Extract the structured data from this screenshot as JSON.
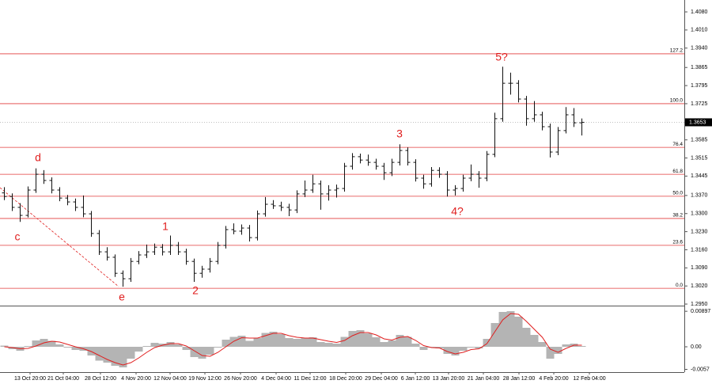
{
  "chart_data": [
    {
      "type": "ohlc",
      "xlim": [
        -0.5,
        86
      ],
      "ylim": [
        1.2944,
        1.4126
      ],
      "yticks": [
        {
          "value": 1.408,
          "label": "1.4080"
        },
        {
          "value": 1.401,
          "label": "1.4010"
        },
        {
          "value": 1.394,
          "label": "1.3940"
        },
        {
          "value": 1.3865,
          "label": "1.3865"
        },
        {
          "value": 1.3795,
          "label": "1.3795"
        },
        {
          "value": 1.3725,
          "label": "1.3725"
        },
        {
          "value": 1.3585,
          "label": "1.3585"
        },
        {
          "value": 1.3515,
          "label": "1.3515"
        },
        {
          "value": 1.3445,
          "label": "1.3445"
        },
        {
          "value": 1.337,
          "label": "1.3370"
        },
        {
          "value": 1.33,
          "label": "1.3300"
        },
        {
          "value": 1.323,
          "label": "1.3230"
        },
        {
          "value": 1.316,
          "label": "1.3160"
        },
        {
          "value": 1.309,
          "label": "1.3090"
        },
        {
          "value": 1.302,
          "label": "1.3020"
        },
        {
          "value": 1.295,
          "label": "1.2950"
        }
      ],
      "xticks": [
        {
          "value": 3.3,
          "label": "13 Oct 20:00"
        },
        {
          "value": 7.5,
          "label": "21 Oct 04:00"
        },
        {
          "value": 12.2,
          "label": "28 Oct 12:00"
        },
        {
          "value": 16.7,
          "label": "4 Nov 20:00"
        },
        {
          "value": 21.0,
          "label": "12 Nov 04:00"
        },
        {
          "value": 25.4,
          "label": "19 Nov 12:00"
        },
        {
          "value": 29.9,
          "label": "26 Nov 20:00"
        },
        {
          "value": 34.4,
          "label": "4 Dec 04:00"
        },
        {
          "value": 38.7,
          "label": "11 Dec 12:00"
        },
        {
          "value": 43.2,
          "label": "18 Dec 20:00"
        },
        {
          "value": 47.7,
          "label": "29 Dec 04:00"
        },
        {
          "value": 52.0,
          "label": "6 Jan 12:00"
        },
        {
          "value": 56.2,
          "label": "13 Jan 20:00"
        },
        {
          "value": 60.6,
          "label": "21 Jan 04:00"
        },
        {
          "value": 65.1,
          "label": "28 Jan 12:00"
        },
        {
          "value": 69.5,
          "label": "4 Feb 20:00"
        },
        {
          "value": 74.0,
          "label": "12 Feb 04:00"
        }
      ],
      "open": [
        1.338,
        1.3366,
        1.3324,
        1.3293,
        1.3391,
        1.3452,
        1.3428,
        1.3391,
        1.336,
        1.3345,
        1.3324,
        1.3299,
        1.3223,
        1.3152,
        1.3131,
        1.3069,
        1.3048,
        1.3115,
        1.314,
        1.3152,
        1.317,
        1.3152,
        1.3177,
        1.3152,
        1.3115,
        1.3069,
        1.3085,
        1.3115,
        1.3177,
        1.3238,
        1.3232,
        1.3244,
        1.3207,
        1.3299,
        1.3336,
        1.333,
        1.3324,
        1.3314,
        1.3376,
        1.3391,
        1.3415,
        1.3376,
        1.3391,
        1.3397,
        1.3483,
        1.352,
        1.3507,
        1.3498,
        1.3483,
        1.3458,
        1.3498,
        1.3544,
        1.3498,
        1.3437,
        1.3415,
        1.3467,
        1.3452,
        1.3391,
        1.3397,
        1.3437,
        1.3452,
        1.3437,
        1.3529,
        1.3667,
        1.3804,
        1.3804,
        1.3743,
        1.3667,
        1.3682,
        1.3636,
        1.3538,
        1.3621,
        1.3682,
        1.3651
      ],
      "high": [
        1.3402,
        1.3378,
        1.334,
        1.3405,
        1.3475,
        1.3468,
        1.344,
        1.3402,
        1.3372,
        1.3358,
        1.337,
        1.331,
        1.3236,
        1.317,
        1.3142,
        1.308,
        1.3128,
        1.3155,
        1.318,
        1.3184,
        1.3182,
        1.3215,
        1.319,
        1.3164,
        1.3126,
        1.3098,
        1.3128,
        1.319,
        1.3252,
        1.3262,
        1.3258,
        1.3256,
        1.3312,
        1.3364,
        1.3352,
        1.3346,
        1.3338,
        1.339,
        1.3428,
        1.345,
        1.3428,
        1.341,
        1.3412,
        1.3496,
        1.3534,
        1.3532,
        1.3528,
        1.3512,
        1.3496,
        1.3512,
        1.3568,
        1.3556,
        1.351,
        1.345,
        1.348,
        1.3479,
        1.3464,
        1.341,
        1.345,
        1.349,
        1.3464,
        1.3542,
        1.369,
        1.3868,
        1.3845,
        1.3816,
        1.3755,
        1.3735,
        1.3694,
        1.3648,
        1.3635,
        1.3712,
        1.3708,
        1.3668
      ],
      "low": [
        1.3352,
        1.331,
        1.3268,
        1.3285,
        1.338,
        1.3415,
        1.3378,
        1.3348,
        1.3332,
        1.331,
        1.3286,
        1.321,
        1.314,
        1.3118,
        1.3055,
        1.3017,
        1.3036,
        1.3104,
        1.3128,
        1.314,
        1.3138,
        1.314,
        1.314,
        1.3102,
        1.3036,
        1.3052,
        1.3072,
        1.3104,
        1.3165,
        1.322,
        1.3218,
        1.3192,
        1.3196,
        1.3288,
        1.3318,
        1.331,
        1.329,
        1.3302,
        1.3364,
        1.338,
        1.3315,
        1.335,
        1.3362,
        1.3385,
        1.347,
        1.3494,
        1.3485,
        1.347,
        1.343,
        1.3445,
        1.3486,
        1.3486,
        1.3424,
        1.3396,
        1.3404,
        1.3438,
        1.3366,
        1.337,
        1.3385,
        1.3425,
        1.34,
        1.3425,
        1.3518,
        1.3655,
        1.376,
        1.373,
        1.364,
        1.3655,
        1.3622,
        1.3517,
        1.3526,
        1.361,
        1.3635,
        1.3602
      ],
      "close": [
        1.3366,
        1.3324,
        1.3293,
        1.3391,
        1.3452,
        1.3428,
        1.3391,
        1.336,
        1.3345,
        1.3324,
        1.3299,
        1.3223,
        1.3152,
        1.3131,
        1.3069,
        1.3048,
        1.3115,
        1.314,
        1.3152,
        1.317,
        1.3152,
        1.3177,
        1.3152,
        1.3115,
        1.3069,
        1.3085,
        1.3115,
        1.3177,
        1.3238,
        1.3232,
        1.3244,
        1.3207,
        1.3299,
        1.3336,
        1.333,
        1.3324,
        1.3314,
        1.3376,
        1.3391,
        1.3415,
        1.3376,
        1.3391,
        1.3397,
        1.3483,
        1.352,
        1.3507,
        1.3498,
        1.3483,
        1.3458,
        1.3498,
        1.3544,
        1.3498,
        1.3437,
        1.3415,
        1.3467,
        1.3452,
        1.3391,
        1.3397,
        1.3437,
        1.3452,
        1.3437,
        1.3529,
        1.3667,
        1.3804,
        1.3804,
        1.3743,
        1.3667,
        1.3682,
        1.3636,
        1.3538,
        1.3621,
        1.3682,
        1.3651,
        1.3653
      ],
      "fib_levels": [
        {
          "value": 1.3918,
          "label": "127.2"
        },
        {
          "value": 1.3725,
          "label": "100.0"
        },
        {
          "value": 1.3556,
          "label": "76.4"
        },
        {
          "value": 1.3452,
          "label": "61.8"
        },
        {
          "value": 1.3367,
          "label": "50.0"
        },
        {
          "value": 1.3281,
          "label": "38.2"
        },
        {
          "value": 1.3177,
          "label": "23.6"
        },
        {
          "value": 1.3011,
          "label": "0.0"
        }
      ],
      "fib_color": "#e23b3b",
      "last_price": 1.3653,
      "annotations": [
        "d",
        "c",
        "e",
        "1",
        "2",
        "3",
        "4?",
        "5?"
      ]
    },
    {
      "type": "macd",
      "ylim": [
        -0.0064,
        0.01
      ],
      "yticks": [
        0.00897,
        {
          "value": 0,
          "label": "0.00"
        },
        -0.0057
      ],
      "histogram": [
        0.0003,
        -0.0006,
        -0.001,
        0.0002,
        0.0016,
        0.002,
        0.0015,
        0.0006,
        -0.0002,
        -0.0008,
        -0.001,
        -0.0022,
        -0.0035,
        -0.004,
        -0.0048,
        -0.0052,
        -0.003,
        -0.0012,
        0.0002,
        0.001,
        0.0008,
        0.0012,
        0.0006,
        -0.0008,
        -0.0026,
        -0.003,
        -0.002,
        -0.0002,
        0.0018,
        0.0025,
        0.0028,
        0.0015,
        0.0022,
        0.0035,
        0.0038,
        0.0032,
        0.0022,
        0.002,
        0.0022,
        0.0024,
        0.0012,
        0.001,
        0.0008,
        0.0025,
        0.004,
        0.0042,
        0.0034,
        0.0024,
        0.0012,
        0.0016,
        0.003,
        0.0025,
        0.0008,
        -0.0008,
        -0.0002,
        -0.0004,
        -0.0018,
        -0.0022,
        -0.001,
        -0.0002,
        -0.0004,
        0.002,
        0.006,
        0.0088,
        0.009,
        0.0076,
        0.0048,
        0.003,
        0.0012,
        -0.003,
        -0.0018,
        0.0006,
        0.0008,
        0.0002
      ],
      "signal": [
        0.0,
        -0.0002,
        -0.0005,
        -0.0004,
        0.0002,
        0.001,
        0.0014,
        0.0012,
        0.0006,
        0.0,
        -0.0005,
        -0.0012,
        -0.0022,
        -0.0032,
        -0.004,
        -0.0046,
        -0.004,
        -0.0028,
        -0.0014,
        -0.0002,
        0.0004,
        0.0008,
        0.0008,
        0.0002,
        -0.001,
        -0.0022,
        -0.0024,
        -0.0014,
        0.0,
        0.0014,
        0.0023,
        0.0022,
        0.0022,
        0.0028,
        0.0034,
        0.0034,
        0.0028,
        0.0024,
        0.0022,
        0.0022,
        0.0018,
        0.0014,
        0.0011,
        0.0016,
        0.0028,
        0.0036,
        0.0036,
        0.003,
        0.002,
        0.0017,
        0.0024,
        0.0026,
        0.0016,
        0.0003,
        -0.0002,
        -0.0003,
        -0.0012,
        -0.0018,
        -0.0014,
        -0.0007,
        -0.0005,
        0.0008,
        0.0038,
        0.0068,
        0.0084,
        0.0082,
        0.0064,
        0.0044,
        0.0024,
        -0.0006,
        -0.0014,
        -0.0004,
        0.0004,
        0.0004
      ],
      "histogram_color": "#b4b4b4",
      "signal_color": "#e01e1e"
    }
  ]
}
